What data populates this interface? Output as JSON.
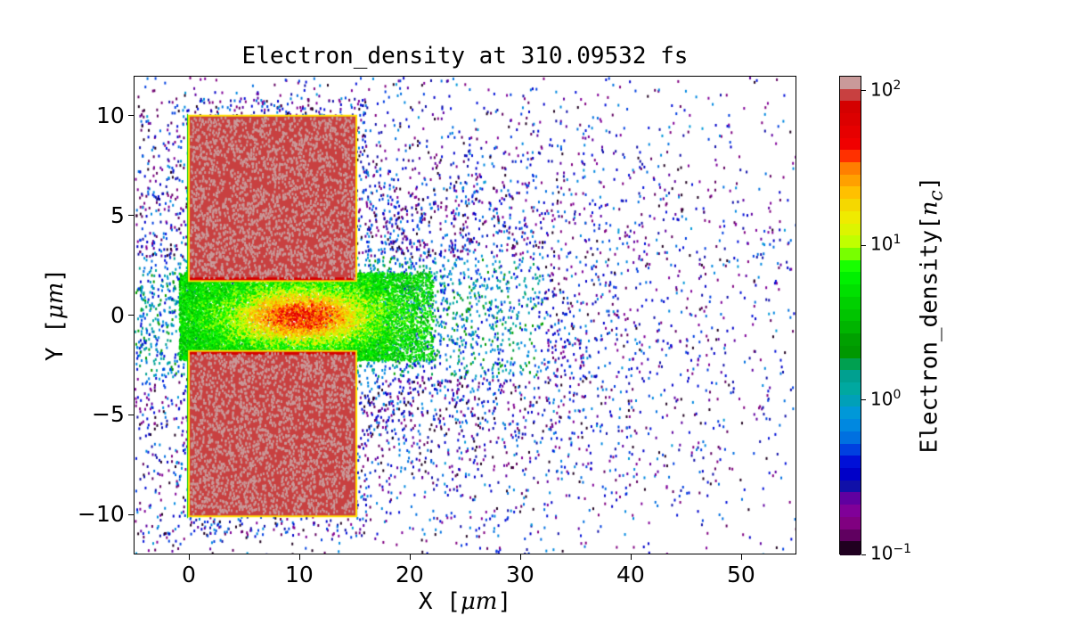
{
  "chart_data": {
    "type": "heatmap",
    "title": "Electron_density at 310.09532 fs",
    "xlabel": "X  [μm]",
    "xlabel_prefix": "X  [",
    "xlabel_unit": "μm",
    "xlabel_suffix": "]",
    "ylabel_prefix": "Y  [",
    "ylabel_unit": "μm",
    "ylabel_suffix": "]",
    "xlim": [
      -5,
      55
    ],
    "ylim": [
      -12,
      12
    ],
    "xticks": [
      0,
      10,
      20,
      30,
      40,
      50
    ],
    "xtick_labels": [
      "0",
      "10",
      "20",
      "30",
      "40",
      "50"
    ],
    "yticks": [
      -10,
      -5,
      0,
      5,
      10
    ],
    "ytick_labels": [
      "−10",
      "−5",
      "0",
      "5",
      "10"
    ],
    "colorbar": {
      "label_prefix": "Electron_density[",
      "label_var": "n",
      "label_sub": "c",
      "label_suffix": "]",
      "scale": "log",
      "range": [
        0.1,
        125
      ],
      "ticks": [
        {
          "value": 0.1,
          "base": "10",
          "exp": "−1"
        },
        {
          "value": 1,
          "base": "10",
          "exp": "0"
        },
        {
          "value": 10,
          "base": "10",
          "exp": "1"
        },
        {
          "value": 100,
          "base": "10",
          "exp": "2"
        }
      ],
      "colors": [
        "#c99a9a",
        "#c84040",
        "#d40000",
        "#dc0000",
        "#e60000",
        "#f00000",
        "#ff3000",
        "#ff7f00",
        "#ffa000",
        "#ffc000",
        "#f5d800",
        "#efeb00",
        "#dcf500",
        "#c0ff00",
        "#78ff00",
        "#18ff00",
        "#00f000",
        "#00e000",
        "#00d000",
        "#00c400",
        "#00b400",
        "#00a000",
        "#009800",
        "#00a050",
        "#00a090",
        "#00a8a0",
        "#00a0b8",
        "#0098d8",
        "#0088e0",
        "#0070e0",
        "#0040e0",
        "#0010d8",
        "#0000c8",
        "#1010a8",
        "#6000a0",
        "#800098",
        "#800080",
        "#600060",
        "#200020"
      ]
    },
    "features": [
      {
        "name": "upper-target-block",
        "x": [
          0,
          15
        ],
        "y": [
          1.8,
          10
        ],
        "density": 100
      },
      {
        "name": "lower-target-block",
        "x": [
          0,
          15
        ],
        "y": [
          -10,
          -1.8
        ],
        "density": 100
      },
      {
        "name": "channel-plasma",
        "x": [
          0,
          20
        ],
        "y": [
          -1.8,
          1.8
        ],
        "density": 10
      },
      {
        "name": "expanding-electron-cloud",
        "x": [
          -5,
          55
        ],
        "y": [
          -12,
          12
        ],
        "density": 0.5
      }
    ]
  }
}
